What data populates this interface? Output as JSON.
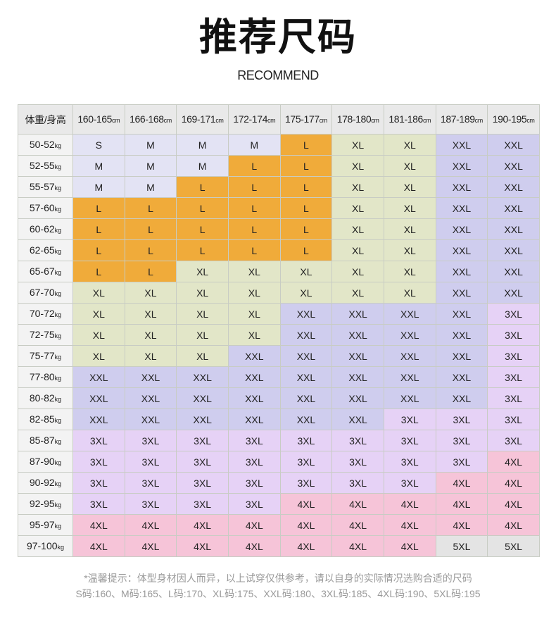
{
  "title": "推荐尺码",
  "subtitle": "RECOMMEND",
  "table": {
    "corner": "体重/身高",
    "height_unit": "cm",
    "weight_unit": "kg",
    "heights": [
      "160-165",
      "166-168",
      "169-171",
      "172-174",
      "175-177",
      "178-180",
      "181-186",
      "187-189",
      "190-195"
    ],
    "rows": [
      {
        "w": "50-52",
        "s": [
          "S",
          "M",
          "M",
          "M",
          "L",
          "XL",
          "XL",
          "XXL",
          "XXL"
        ]
      },
      {
        "w": "52-55",
        "s": [
          "M",
          "M",
          "M",
          "L",
          "L",
          "XL",
          "XL",
          "XXL",
          "XXL"
        ]
      },
      {
        "w": "55-57",
        "s": [
          "M",
          "M",
          "L",
          "L",
          "L",
          "XL",
          "XL",
          "XXL",
          "XXL"
        ]
      },
      {
        "w": "57-60",
        "s": [
          "L",
          "L",
          "L",
          "L",
          "L",
          "XL",
          "XL",
          "XXL",
          "XXL"
        ]
      },
      {
        "w": "60-62",
        "s": [
          "L",
          "L",
          "L",
          "L",
          "L",
          "XL",
          "XL",
          "XXL",
          "XXL"
        ]
      },
      {
        "w": "62-65",
        "s": [
          "L",
          "L",
          "L",
          "L",
          "L",
          "XL",
          "XL",
          "XXL",
          "XXL"
        ]
      },
      {
        "w": "65-67",
        "s": [
          "L",
          "L",
          "XL",
          "XL",
          "XL",
          "XL",
          "XL",
          "XXL",
          "XXL"
        ]
      },
      {
        "w": "67-70",
        "s": [
          "XL",
          "XL",
          "XL",
          "XL",
          "XL",
          "XL",
          "XL",
          "XXL",
          "XXL"
        ]
      },
      {
        "w": "70-72",
        "s": [
          "XL",
          "XL",
          "XL",
          "XL",
          "XXL",
          "XXL",
          "XXL",
          "XXL",
          "3XL"
        ]
      },
      {
        "w": "72-75",
        "s": [
          "XL",
          "XL",
          "XL",
          "XL",
          "XXL",
          "XXL",
          "XXL",
          "XXL",
          "3XL"
        ]
      },
      {
        "w": "75-77",
        "s": [
          "XL",
          "XL",
          "XL",
          "XXL",
          "XXL",
          "XXL",
          "XXL",
          "XXL",
          "3XL"
        ]
      },
      {
        "w": "77-80",
        "s": [
          "XXL",
          "XXL",
          "XXL",
          "XXL",
          "XXL",
          "XXL",
          "XXL",
          "XXL",
          "3XL"
        ]
      },
      {
        "w": "80-82",
        "s": [
          "XXL",
          "XXL",
          "XXL",
          "XXL",
          "XXL",
          "XXL",
          "XXL",
          "XXL",
          "3XL"
        ]
      },
      {
        "w": "82-85",
        "s": [
          "XXL",
          "XXL",
          "XXL",
          "XXL",
          "XXL",
          "XXL",
          "3XL",
          "3XL",
          "3XL"
        ]
      },
      {
        "w": "85-87",
        "s": [
          "3XL",
          "3XL",
          "3XL",
          "3XL",
          "3XL",
          "3XL",
          "3XL",
          "3XL",
          "3XL"
        ]
      },
      {
        "w": "87-90",
        "s": [
          "3XL",
          "3XL",
          "3XL",
          "3XL",
          "3XL",
          "3XL",
          "3XL",
          "3XL",
          "4XL"
        ]
      },
      {
        "w": "90-92",
        "s": [
          "3XL",
          "3XL",
          "3XL",
          "3XL",
          "3XL",
          "3XL",
          "3XL",
          "4XL",
          "4XL"
        ]
      },
      {
        "w": "92-95",
        "s": [
          "3XL",
          "3XL",
          "3XL",
          "3XL",
          "4XL",
          "4XL",
          "4XL",
          "4XL",
          "4XL"
        ]
      },
      {
        "w": "95-97",
        "s": [
          "4XL",
          "4XL",
          "4XL",
          "4XL",
          "4XL",
          "4XL",
          "4XL",
          "4XL",
          "4XL"
        ]
      },
      {
        "w": "97-100",
        "s": [
          "4XL",
          "4XL",
          "4XL",
          "4XL",
          "4XL",
          "4XL",
          "4XL",
          "5XL",
          "5XL"
        ]
      }
    ]
  },
  "colors": {
    "S": "#e3e3f4",
    "M": "#e3e3f4",
    "L": "#f0ab3a",
    "XL": "#e2e6c8",
    "XXL": "#cfcdee",
    "3XL": "#e6d2f6",
    "4XL": "#f6c4d8",
    "5XL": "#e4e4e4"
  },
  "notes": [
    "*温馨提示：体型身材因人而异，以上试穿仅供参考，请以自身的实际情况选购合适的尺码",
    "S码:160、M码:165、L码:170、XL码:175、XXL码:180、3XL码:185、4XL码:190、5XL码:195"
  ]
}
